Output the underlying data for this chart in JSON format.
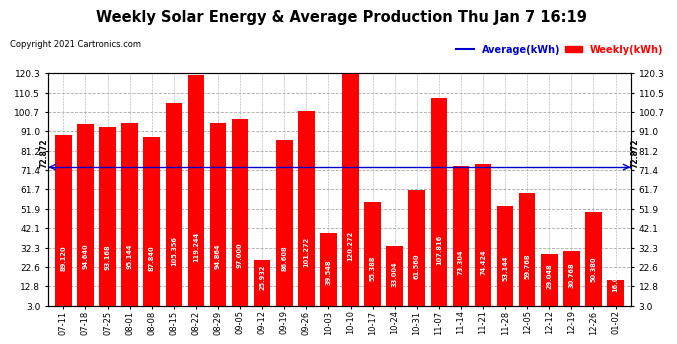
{
  "title": "Weekly Solar Energy & Average Production Thu Jan 7 16:19",
  "copyright": "Copyright 2021 Cartronics.com",
  "categories": [
    "07-11",
    "07-18",
    "07-25",
    "08-01",
    "08-08",
    "08-15",
    "08-22",
    "08-29",
    "09-05",
    "09-12",
    "09-19",
    "09-26",
    "10-03",
    "10-10",
    "10-17",
    "10-24",
    "10-31",
    "11-07",
    "11-14",
    "11-21",
    "11-28",
    "12-05",
    "12-12",
    "12-19",
    "12-26",
    "01-02"
  ],
  "values": [
    89.12,
    94.64,
    93.168,
    95.144,
    87.84,
    105.356,
    119.244,
    94.864,
    97.0,
    25.932,
    86.608,
    101.272,
    39.548,
    120.272,
    55.388,
    33.004,
    61.56,
    107.816,
    73.304,
    74.424,
    53.144,
    59.768,
    29.048,
    30.768,
    50.38,
    16.068
  ],
  "average": 72.872,
  "bar_color": "#ff0000",
  "average_color": "#0000cc",
  "background_color": "#ffffff",
  "plot_bg_color": "#ffffff",
  "grid_color": "#aaaaaa",
  "title_color": "#000000",
  "copyright_color": "#000000",
  "bar_label_color": "#ffffff",
  "yticks": [
    3.0,
    12.8,
    22.6,
    32.3,
    42.1,
    51.9,
    61.7,
    71.4,
    81.2,
    91.0,
    100.7,
    110.5,
    120.3
  ],
  "ymin": 3.0,
  "ymax": 120.3,
  "legend_average_label": "Average(kWh)",
  "legend_weekly_label": "Weekly(kWh)",
  "average_label": "72.872"
}
